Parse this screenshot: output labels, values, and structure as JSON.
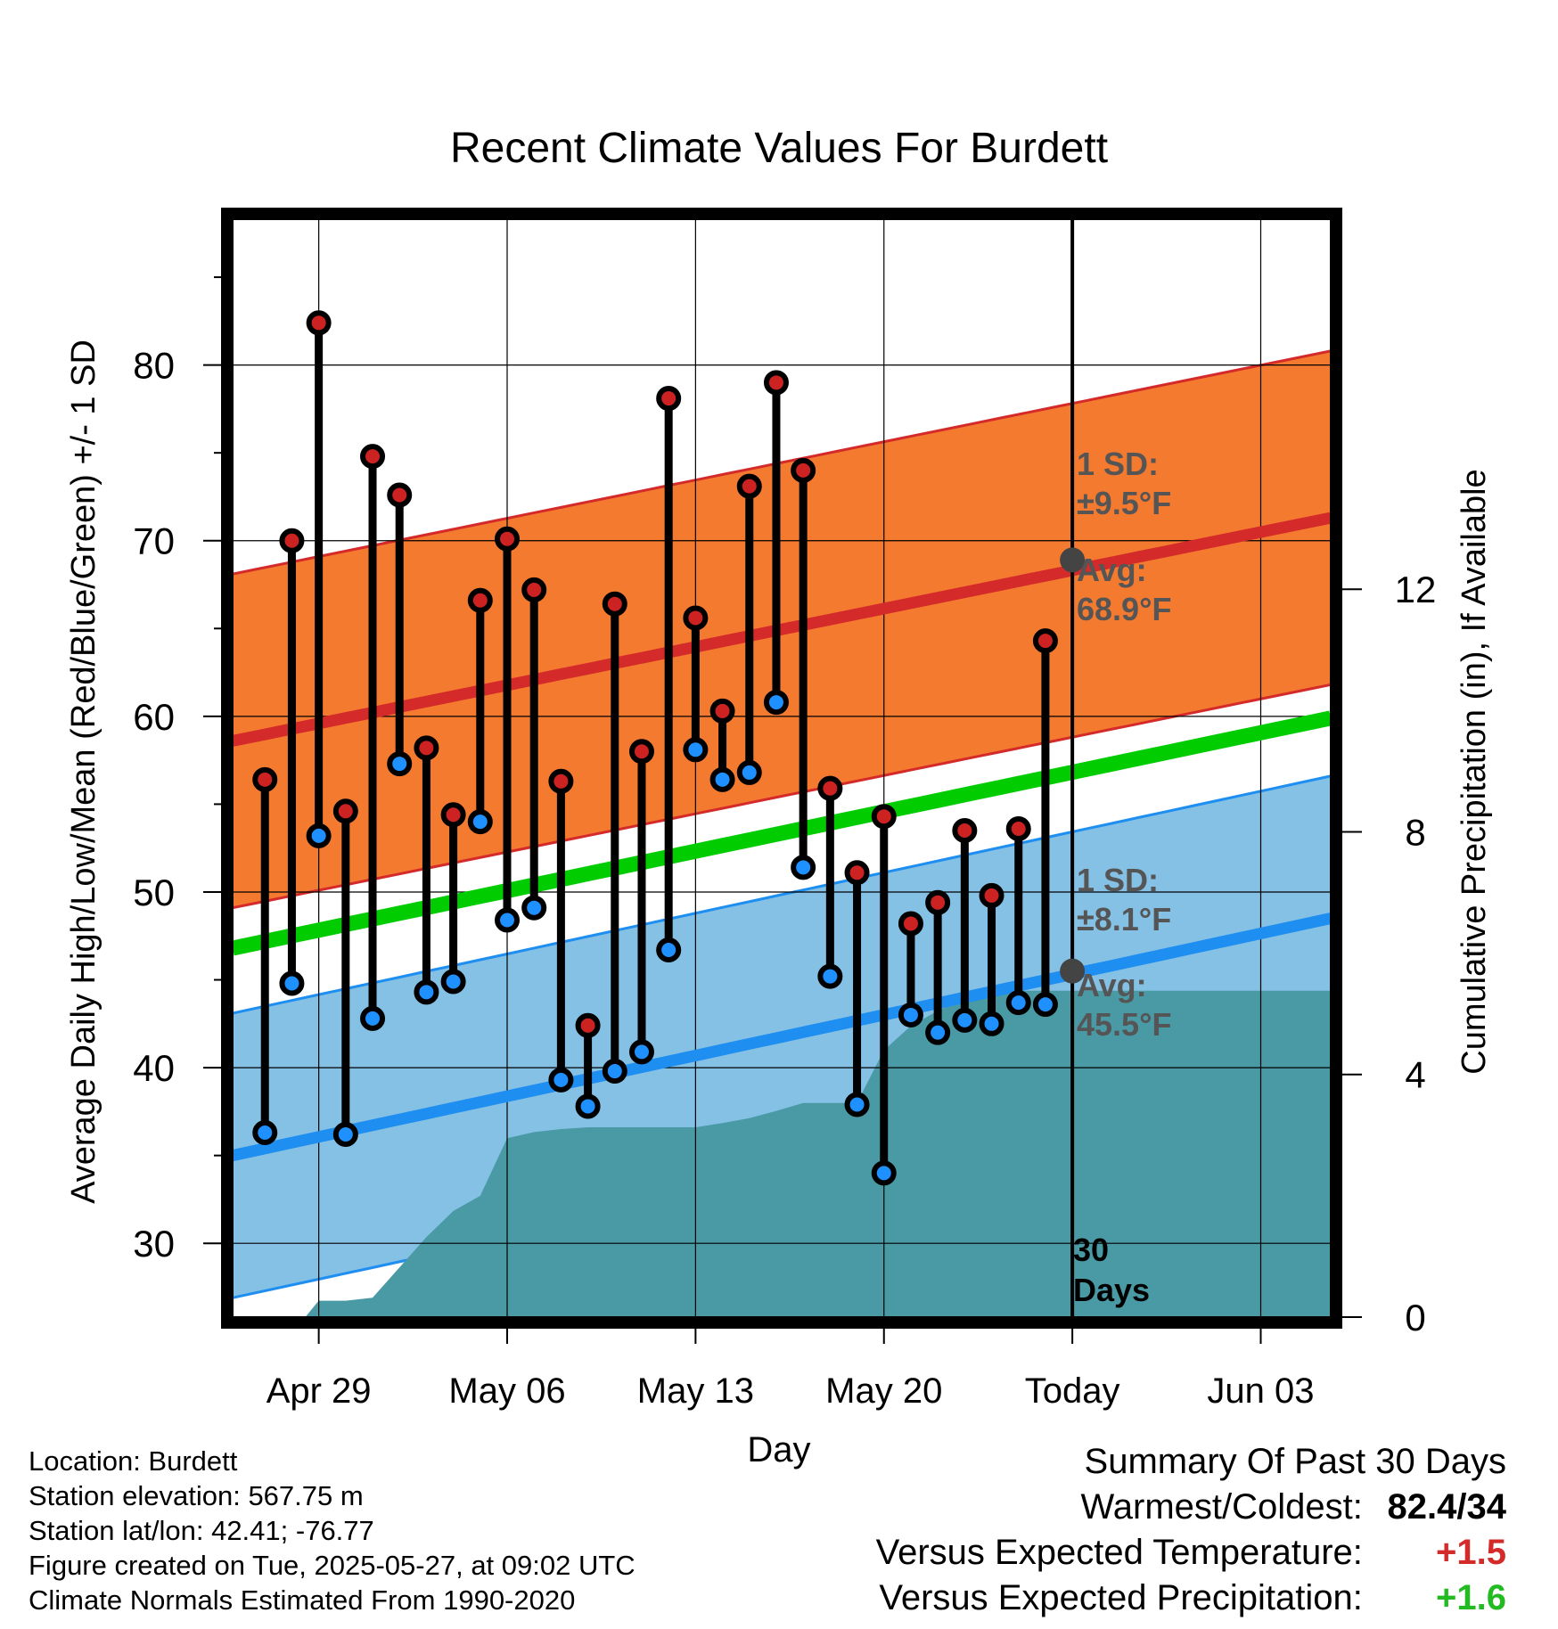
{
  "chart_data": {
    "type": "line",
    "title": "Recent Climate Values For Burdett",
    "xlabel": "Day",
    "ylabel": "Average Daily High/Low/Mean (Red/Blue/Green) +/- 1 SD",
    "y2label": "Cumulative Precipitation (in), If Available",
    "x_ticks": [
      "Apr 29",
      "May 06",
      "May 13",
      "May 20",
      "Today",
      "Jun 03"
    ],
    "x_tick_days": [
      0,
      7,
      14,
      21,
      28,
      35
    ],
    "xlim": [
      -3.2,
      37.6
    ],
    "ylim": [
      25.8,
      88.3
    ],
    "y_ticks": [
      30,
      40,
      50,
      60,
      70,
      80
    ],
    "y2lim": [
      0,
      18.1
    ],
    "y2_ticks": [
      0,
      4,
      8,
      12
    ],
    "grid": true,
    "normal_high": {
      "start": 58.6,
      "end": 71.3,
      "sd": 9.5,
      "color": "#d42a2a",
      "band_color": "#f47a30"
    },
    "normal_low": {
      "start": 35.0,
      "end": 48.5,
      "sd": 8.1,
      "color": "#1e8ef0",
      "band_color": "#84c1e5"
    },
    "normal_mean": {
      "start": 46.8,
      "end": 59.9,
      "color": "#00cc00"
    },
    "highs": [
      56.4,
      70.0,
      82.4,
      54.6,
      74.8,
      72.6,
      58.2,
      54.4,
      66.6,
      70.1,
      67.2,
      56.3,
      42.4,
      66.4,
      58.0,
      78.1,
      65.6,
      60.3,
      73.1,
      79.0,
      74.0,
      55.9,
      51.1,
      54.3,
      48.2,
      49.4,
      53.5,
      49.8,
      53.6,
      64.3
    ],
    "lows": [
      36.3,
      44.8,
      53.2,
      36.2,
      42.8,
      57.3,
      44.3,
      44.9,
      54.0,
      48.4,
      49.1,
      39.3,
      37.8,
      39.8,
      40.9,
      46.7,
      58.1,
      56.4,
      56.8,
      60.8,
      51.4,
      45.2,
      37.9,
      34.0,
      43.0,
      42.0,
      42.7,
      42.5,
      43.7,
      43.6
    ],
    "precip_days": [
      -0.5,
      0,
      1,
      2,
      3,
      4,
      5,
      6,
      7,
      8,
      9,
      10,
      11,
      12,
      13,
      14,
      15,
      16,
      17,
      18,
      19,
      20,
      21,
      22,
      23,
      24,
      25,
      26,
      27,
      28,
      37.6
    ],
    "precip_cum": [
      0,
      0.27,
      0.27,
      0.32,
      0.82,
      1.32,
      1.75,
      2.0,
      2.95,
      3.05,
      3.1,
      3.13,
      3.13,
      3.13,
      3.13,
      3.13,
      3.2,
      3.28,
      3.4,
      3.53,
      3.53,
      3.53,
      4.4,
      4.8,
      5.05,
      5.25,
      5.38,
      5.38,
      5.38,
      5.38,
      5.38
    ],
    "today_high_avg": 68.9,
    "today_low_avg": 45.5,
    "annotations": {
      "high_sd": "±9.5°F",
      "high_avg": "68.9°F",
      "low_sd": "±8.1°F",
      "low_avg": "45.5°F",
      "sd_label": "1 SD:",
      "avg_label": "Avg:",
      "days_line1": "30",
      "days_line2": "Days"
    },
    "colors": {
      "high_marker": "#cc2222",
      "low_marker": "#1e90ff",
      "precip": "#4a9aa6",
      "annotation": "#555555"
    }
  },
  "footer": {
    "location": "Location: Burdett",
    "elevation": "Station elevation: 567.75 m",
    "latlon": "Station lat/lon: 42.41; -76.77",
    "created": "Figure created on Tue, 2025-05-27, at 09:02 UTC",
    "normals": "Climate Normals Estimated From 1990-2020"
  },
  "summary": {
    "title": "Summary Of Past 30 Days",
    "warmest_label": "Warmest/Coldest:",
    "warmest_value": "82.4/34",
    "temp_label": "Versus Expected Temperature:",
    "temp_value": "+1.5",
    "temp_color": "#d42a2a",
    "precip_label": "Versus Expected Precipitation:",
    "precip_value": "+1.6",
    "precip_color": "#22bb22"
  }
}
